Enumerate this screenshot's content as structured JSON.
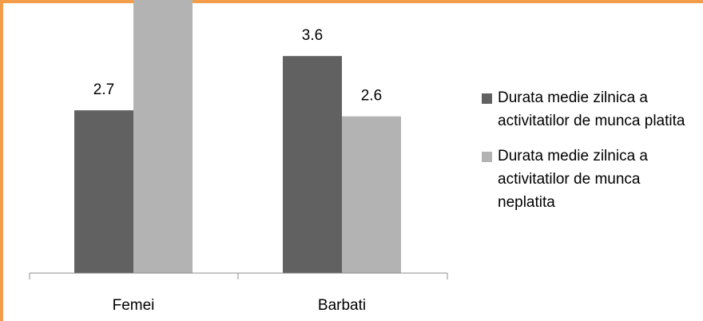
{
  "chart_data": {
    "type": "bar",
    "categories": [
      "Femei",
      "Barbati"
    ],
    "series": [
      {
        "name": "Durata medie zilnica a activitatilor de munca platita",
        "values": [
          2.7,
          3.6
        ],
        "color": "#616161"
      },
      {
        "name": "Durata medie zilnica a activitatilor de munca neplatita",
        "values": [
          4.6,
          2.6
        ],
        "color": "#b3b3b3"
      }
    ],
    "ylim": [
      0,
      5.5
    ],
    "grid": false,
    "legend": "right",
    "data_labels": true,
    "frame_color": "#f39c4a"
  }
}
